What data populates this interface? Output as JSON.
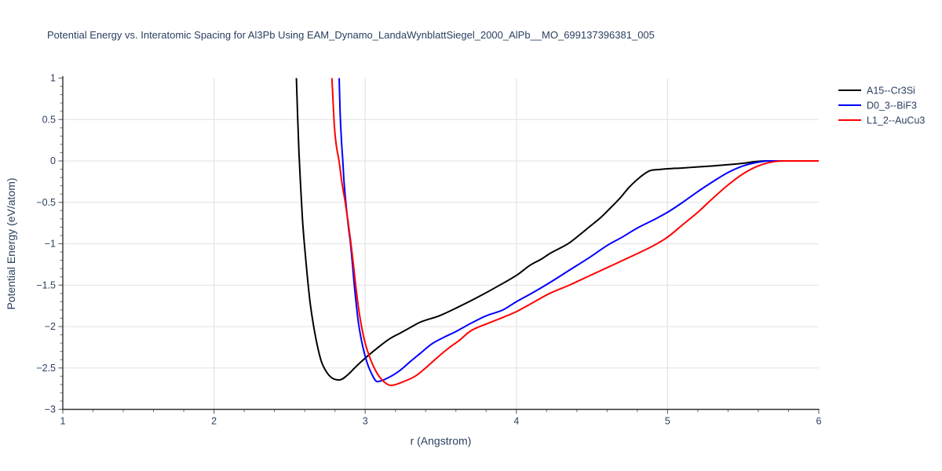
{
  "title": "Potential Energy vs. Interatomic Spacing for Al3Pb Using EAM_Dynamo_LandaWynblattSiegel_2000_AlPb__MO_699137396381_005",
  "colors": {
    "text": "#2a3f5f",
    "grid": "#e6e6e6",
    "spine": "#2f2f2f",
    "tick": "#707070",
    "background": "#ffffff"
  },
  "chart_data": {
    "type": "line",
    "title": "Potential Energy vs. Interatomic Spacing for Al3Pb Using EAM_Dynamo_LandaWynblattSiegel_2000_AlPb__MO_699137396381_005",
    "xlabel": "r (Angstrom)",
    "ylabel": "Potential Energy (eV/atom)",
    "xlim": [
      1,
      6
    ],
    "ylim": [
      -3,
      1
    ],
    "x_ticks": [
      1,
      2,
      3,
      4,
      5,
      6
    ],
    "y_ticks": [
      1,
      0.5,
      0,
      -0.5,
      -1,
      -1.5,
      -2,
      -2.5,
      -3
    ],
    "x_minor_step": 0.2,
    "y_minor_step": 0.1,
    "grid": true,
    "legend_position": "top-right",
    "series": [
      {
        "name": "A15--Cr3Si",
        "color": "#000000",
        "points": [
          [
            2.545,
            1.0
          ],
          [
            2.553,
            0.55
          ],
          [
            2.562,
            0.1
          ],
          [
            2.573,
            -0.3
          ],
          [
            2.585,
            -0.7
          ],
          [
            2.6,
            -1.05
          ],
          [
            2.615,
            -1.35
          ],
          [
            2.635,
            -1.7
          ],
          [
            2.655,
            -1.95
          ],
          [
            2.68,
            -2.2
          ],
          [
            2.71,
            -2.42
          ],
          [
            2.745,
            -2.55
          ],
          [
            2.78,
            -2.62
          ],
          [
            2.83,
            -2.645
          ],
          [
            2.88,
            -2.59
          ],
          [
            2.93,
            -2.5
          ],
          [
            2.97,
            -2.43
          ],
          [
            3.08,
            -2.26
          ],
          [
            3.16,
            -2.15
          ],
          [
            3.23,
            -2.08
          ],
          [
            3.3,
            -2.01
          ],
          [
            3.36,
            -1.95
          ],
          [
            3.49,
            -1.87
          ],
          [
            3.62,
            -1.76
          ],
          [
            3.75,
            -1.64
          ],
          [
            3.88,
            -1.51
          ],
          [
            4.01,
            -1.37
          ],
          [
            4.09,
            -1.26
          ],
          [
            4.17,
            -1.18
          ],
          [
            4.22,
            -1.12
          ],
          [
            4.35,
            -0.99
          ],
          [
            4.42,
            -0.89
          ],
          [
            4.48,
            -0.8
          ],
          [
            4.56,
            -0.68
          ],
          [
            4.61,
            -0.59
          ],
          [
            4.69,
            -0.44
          ],
          [
            4.74,
            -0.33
          ],
          [
            4.79,
            -0.24
          ],
          [
            4.84,
            -0.165
          ],
          [
            4.88,
            -0.12
          ],
          [
            4.95,
            -0.103
          ],
          [
            5.0,
            -0.095
          ],
          [
            5.1,
            -0.085
          ],
          [
            5.2,
            -0.072
          ],
          [
            5.3,
            -0.06
          ],
          [
            5.4,
            -0.045
          ],
          [
            5.5,
            -0.028
          ],
          [
            5.58,
            -0.008
          ],
          [
            5.65,
            0.0
          ],
          [
            6.0,
            0.0
          ]
        ]
      },
      {
        "name": "D0_3--BiF3",
        "color": "#0000ff",
        "points": [
          [
            2.828,
            1.0
          ],
          [
            2.834,
            0.6
          ],
          [
            2.843,
            0.25
          ],
          [
            2.852,
            0.0
          ],
          [
            2.86,
            -0.25
          ],
          [
            2.872,
            -0.5
          ],
          [
            2.888,
            -0.78
          ],
          [
            2.903,
            -1.0
          ],
          [
            2.916,
            -1.25
          ],
          [
            2.928,
            -1.5
          ],
          [
            2.944,
            -1.78
          ],
          [
            2.955,
            -1.95
          ],
          [
            2.985,
            -2.25
          ],
          [
            3.01,
            -2.42
          ],
          [
            3.035,
            -2.54
          ],
          [
            3.08,
            -2.665
          ],
          [
            3.15,
            -2.62
          ],
          [
            3.23,
            -2.53
          ],
          [
            3.3,
            -2.42
          ],
          [
            3.36,
            -2.33
          ],
          [
            3.44,
            -2.21
          ],
          [
            3.52,
            -2.13
          ],
          [
            3.6,
            -2.06
          ],
          [
            3.7,
            -1.96
          ],
          [
            3.8,
            -1.87
          ],
          [
            3.91,
            -1.8
          ],
          [
            4.0,
            -1.7
          ],
          [
            4.1,
            -1.6
          ],
          [
            4.22,
            -1.47
          ],
          [
            4.35,
            -1.32
          ],
          [
            4.48,
            -1.17
          ],
          [
            4.61,
            -1.01
          ],
          [
            4.7,
            -0.92
          ],
          [
            4.8,
            -0.81
          ],
          [
            4.92,
            -0.7
          ],
          [
            5.0,
            -0.62
          ],
          [
            5.1,
            -0.5
          ],
          [
            5.2,
            -0.37
          ],
          [
            5.3,
            -0.25
          ],
          [
            5.4,
            -0.14
          ],
          [
            5.5,
            -0.06
          ],
          [
            5.6,
            -0.015
          ],
          [
            5.68,
            0.0
          ],
          [
            6.0,
            0.0
          ]
        ]
      },
      {
        "name": "L1_2--AuCu3",
        "color": "#ff0000",
        "points": [
          [
            2.78,
            1.0
          ],
          [
            2.788,
            0.7
          ],
          [
            2.797,
            0.4
          ],
          [
            2.808,
            0.2
          ],
          [
            2.827,
            0.0
          ],
          [
            2.845,
            -0.25
          ],
          [
            2.868,
            -0.5
          ],
          [
            2.888,
            -0.75
          ],
          [
            2.906,
            -1.0
          ],
          [
            2.922,
            -1.25
          ],
          [
            2.937,
            -1.5
          ],
          [
            2.958,
            -1.8
          ],
          [
            2.973,
            -1.97
          ],
          [
            3.0,
            -2.2
          ],
          [
            3.03,
            -2.37
          ],
          [
            3.06,
            -2.5
          ],
          [
            3.1,
            -2.62
          ],
          [
            3.17,
            -2.71
          ],
          [
            3.26,
            -2.66
          ],
          [
            3.33,
            -2.6
          ],
          [
            3.4,
            -2.5
          ],
          [
            3.47,
            -2.385
          ],
          [
            3.545,
            -2.27
          ],
          [
            3.62,
            -2.17
          ],
          [
            3.7,
            -2.05
          ],
          [
            3.8,
            -1.97
          ],
          [
            3.91,
            -1.89
          ],
          [
            4.0,
            -1.82
          ],
          [
            4.1,
            -1.72
          ],
          [
            4.22,
            -1.6
          ],
          [
            4.35,
            -1.5
          ],
          [
            4.48,
            -1.39
          ],
          [
            4.61,
            -1.28
          ],
          [
            4.74,
            -1.17
          ],
          [
            4.9,
            -1.03
          ],
          [
            5.0,
            -0.92
          ],
          [
            5.1,
            -0.77
          ],
          [
            5.2,
            -0.62
          ],
          [
            5.3,
            -0.45
          ],
          [
            5.4,
            -0.29
          ],
          [
            5.5,
            -0.155
          ],
          [
            5.6,
            -0.06
          ],
          [
            5.7,
            -0.01
          ],
          [
            5.78,
            0.0
          ],
          [
            6.0,
            0.0
          ]
        ]
      }
    ]
  }
}
